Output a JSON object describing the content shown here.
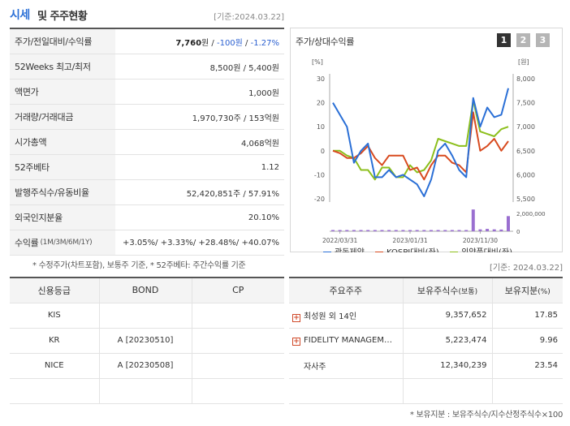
{
  "header": {
    "title_a": "시세",
    "title_b": "및 주주현황",
    "date": "[기준:2024.03.22]"
  },
  "quote": {
    "price_label": "주가/전일대비/수익률",
    "price": "7,760",
    "price_unit": "원",
    "sep": " / ",
    "change": "-100원",
    "change_pct": "-1.27%",
    "w52_label": "52Weeks 최고/최저",
    "w52_value": "8,500원 / 5,400원",
    "face_label": "액면가",
    "face_value": "1,000원",
    "vol_label": "거래량/거래대금",
    "vol_value": "1,970,730주 / 153억원",
    "mcap_label": "시가총액",
    "mcap_value": "4,068억원",
    "beta_label": "52주베타",
    "beta_value": "1.12",
    "shares_label": "발행주식수/유동비율",
    "shares_value": "52,420,851주 / 57.91%",
    "foreign_label": "외국인지분율",
    "foreign_value": "20.10%",
    "ret_label": "수익률",
    "ret_sub": "(1M/3M/6M/1Y)",
    "ret_1m": "+3.05%",
    "ret_3m": "+3.33%",
    "ret_6m": "+28.48%",
    "ret_1y": "+40.07%",
    "ret_sep": "/ "
  },
  "note1": "* 수정주가(차트포함), 보통주 기준, * 52주베타: 주간수익률 기준",
  "chart_panel": {
    "title": "주가/상대수익률",
    "tabs": [
      "1",
      "2",
      "3"
    ],
    "colors": {
      "tab_active": "#333333",
      "tab_inactive": "#b5b5b5"
    }
  },
  "chart_data": {
    "type": "line",
    "left_axis_label": "[%]",
    "right_axis_label": "[원]",
    "left_ticks": [
      "30",
      "20",
      "10",
      "0",
      "-10",
      "-20"
    ],
    "right_ticks": [
      "8,000",
      "7,500",
      "7,000",
      "6,500",
      "6,000",
      "5,500"
    ],
    "volume_ticks": [
      "2,000,000",
      "0"
    ],
    "x_ticks": [
      "2022/03/31",
      "2023/01/31",
      "2023/11/30"
    ],
    "ylim_left": [
      -20,
      30
    ],
    "ylim_right": [
      5500,
      8000
    ],
    "series": [
      {
        "name": "광동제약",
        "color": "#2a6fd6",
        "axis": "left",
        "values": [
          20,
          15,
          10,
          -5,
          0,
          3,
          -11,
          -11,
          -8,
          -11,
          -10,
          -12,
          -14,
          -19,
          -12,
          0,
          3,
          -2,
          -8,
          -11,
          22,
          10,
          18,
          14,
          15,
          26
        ]
      },
      {
        "name": "KOSPI대비(좌)",
        "color": "#d84a1f",
        "axis": "left",
        "values": [
          0,
          -1,
          -3,
          -3,
          -1,
          2,
          -3,
          -6,
          -2,
          -2,
          -2,
          -8,
          -7,
          -12,
          -6,
          -2,
          -2,
          -5,
          -6,
          -9,
          16,
          0,
          2,
          5,
          0,
          4
        ]
      },
      {
        "name": "의약품대비(좌)",
        "color": "#8cbf1c",
        "axis": "left",
        "values": [
          0,
          0,
          -2,
          -3,
          -8,
          -8,
          -12,
          -7,
          -7,
          -11,
          -11,
          -6,
          -9,
          -8,
          -4,
          5,
          4,
          3,
          2,
          2,
          21,
          8,
          7,
          6,
          9,
          10
        ]
      },
      {
        "name": "거래량",
        "color": "#9a6fd0",
        "axis": "volume",
        "values": [
          40000,
          30000,
          30000,
          30000,
          30000,
          30000,
          30000,
          30000,
          30000,
          30000,
          30000,
          30000,
          30000,
          30000,
          30000,
          30000,
          30000,
          30000,
          30000,
          30000,
          2300000,
          200000,
          250000,
          200000,
          180000,
          1600000
        ]
      }
    ]
  },
  "date2": "[기준: 2024.03.22]",
  "credit": {
    "headers": [
      "신용등급",
      "BOND",
      "CP"
    ],
    "rows": [
      {
        "agency": "KIS",
        "bond": "",
        "cp": ""
      },
      {
        "agency": "KR",
        "bond": "A  [20230510]",
        "cp": ""
      },
      {
        "agency": "NICE",
        "bond": "A  [20230508]",
        "cp": ""
      },
      {
        "agency": "",
        "bond": "",
        "cp": ""
      }
    ]
  },
  "holders": {
    "h_name": "주요주주",
    "h_shares": "보유주식수",
    "h_shares_unit": "(보통)",
    "h_pct": "보유지분",
    "h_pct_unit": "(%)",
    "rows": [
      {
        "name": "최성원 외 14인",
        "shares": "9,357,652",
        "pct": "17.85",
        "expand": "+"
      },
      {
        "name": "FIDELITY MANAGEM…",
        "shares": "5,223,474",
        "pct": "9.96",
        "expand": "+"
      },
      {
        "name": "자사주",
        "shares": "12,340,239",
        "pct": "23.54",
        "expand": ""
      },
      {
        "name": "",
        "shares": "",
        "pct": "",
        "expand": ""
      }
    ]
  },
  "note2": "* 보유지분 : 보유주식수/지수산정주식수×100"
}
